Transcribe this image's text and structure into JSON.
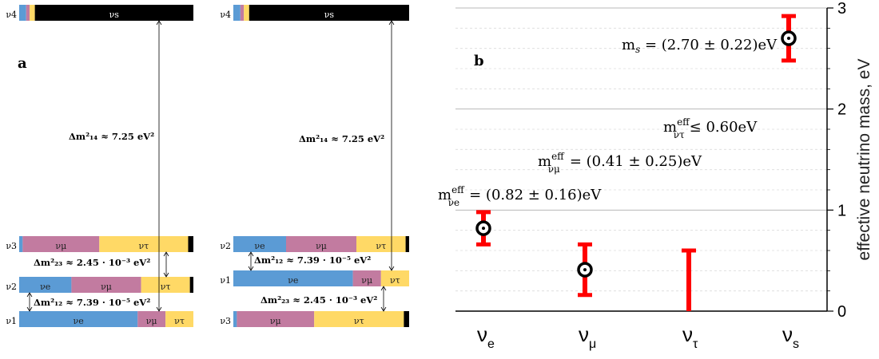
{
  "colors": {
    "nu_e": "#5b9bd5",
    "nu_mu": "#c27ba0",
    "nu_tau": "#ffd966",
    "nu_s": "#000000",
    "error_bar": "#ff0000",
    "grid": "#d0d0d0"
  },
  "panel_a": {
    "label": "a",
    "left_ordering": {
      "states": [
        {
          "name": "ν4",
          "label_text": "ν4",
          "fractions": {
            "e": 0.04,
            "mu": 0.02,
            "tau": 0.03,
            "s": 0.91
          },
          "flavor_labels": [
            "νe",
            "νμ",
            "ντ",
            "νs"
          ]
        },
        {
          "name": "ν3",
          "label_text": "ν3",
          "fractions": {
            "e": 0.02,
            "mu": 0.44,
            "tau": 0.51,
            "s": 0.03
          },
          "flavor_labels": [
            "νe",
            "νμ",
            "ντ",
            "νs"
          ]
        },
        {
          "name": "ν2",
          "label_text": "ν2",
          "fractions": {
            "e": 0.3,
            "mu": 0.4,
            "tau": 0.28,
            "s": 0.02
          },
          "flavor_labels": [
            "νe",
            "νμ",
            "ντ",
            "νs"
          ]
        },
        {
          "name": "ν1",
          "label_text": "ν1",
          "fractions": {
            "e": 0.68,
            "mu": 0.16,
            "tau": 0.16,
            "s": 0.0
          },
          "flavor_labels": [
            "νe",
            "νμ",
            "ντ",
            "νs"
          ]
        }
      ],
      "splittings": {
        "d14": "Δm²₁₄ ≈ 7.25 eV²",
        "d23": "Δm²₂₃ ≈ 2.45 · 10⁻³ eV²",
        "d12": "Δm²₁₂ ≈ 7.39 · 10⁻⁵ eV²"
      }
    },
    "right_ordering": {
      "states": [
        {
          "name": "ν4",
          "label_text": "ν4",
          "fractions": {
            "e": 0.04,
            "mu": 0.02,
            "tau": 0.03,
            "s": 0.91
          },
          "flavor_labels": [
            "νe",
            "νμ",
            "ντ",
            "νs"
          ]
        },
        {
          "name": "ν2",
          "label_text": "ν2",
          "fractions": {
            "e": 0.3,
            "mu": 0.4,
            "tau": 0.28,
            "s": 0.02
          },
          "flavor_labels": [
            "νe",
            "νμ",
            "ντ",
            "νs"
          ]
        },
        {
          "name": "ν1",
          "label_text": "ν1",
          "fractions": {
            "e": 0.68,
            "mu": 0.16,
            "tau": 0.16,
            "s": 0.0
          },
          "flavor_labels": [
            "νe",
            "νμ",
            "ντ",
            "νs"
          ]
        },
        {
          "name": "ν3",
          "label_text": "ν3",
          "fractions": {
            "e": 0.02,
            "mu": 0.44,
            "tau": 0.51,
            "s": 0.03
          },
          "flavor_labels": [
            "νe",
            "νμ",
            "ντ",
            "νs"
          ]
        }
      ],
      "splittings": {
        "d14": "Δm²₁₄ ≈ 7.25 eV²",
        "d12": "Δm²₁₂ ≈ 7.39 · 10⁻⁵ eV²",
        "d23": "Δm²₂₃ ≈ 2.45 · 10⁻³ eV²"
      }
    }
  },
  "panel_b": {
    "label": "b",
    "ylabel": "effective neutrino mass, eV",
    "y_ticks": [
      "0",
      "1",
      "2",
      "3"
    ],
    "x_ticks": [
      {
        "main": "ν",
        "sub": "e"
      },
      {
        "main": "ν",
        "sub": "μ"
      },
      {
        "main": "ν",
        "sub": "τ"
      },
      {
        "main": "ν",
        "sub": "s"
      }
    ],
    "annotations": {
      "ms": "m_s = (2.70 ± 0.22)eV",
      "mtau": "m^eff_ντ ≤ 0.60eV",
      "mmu": "m^eff_νμ = (0.41 ± 0.25)eV",
      "me": "m^eff_νe = (0.82 ± 0.16)eV"
    }
  },
  "chart_data": {
    "type": "scatter",
    "categories": [
      "νe",
      "νμ",
      "ντ",
      "νs"
    ],
    "values": [
      0.82,
      0.41,
      null,
      2.7
    ],
    "errors": [
      0.16,
      0.25,
      null,
      0.22
    ],
    "upper_limits": [
      null,
      null,
      0.6,
      null
    ],
    "ylim": [
      0,
      3
    ],
    "xlabel": "",
    "ylabel": "effective neutrino mass, eV",
    "grid": "horizontal major and minor dashed"
  }
}
